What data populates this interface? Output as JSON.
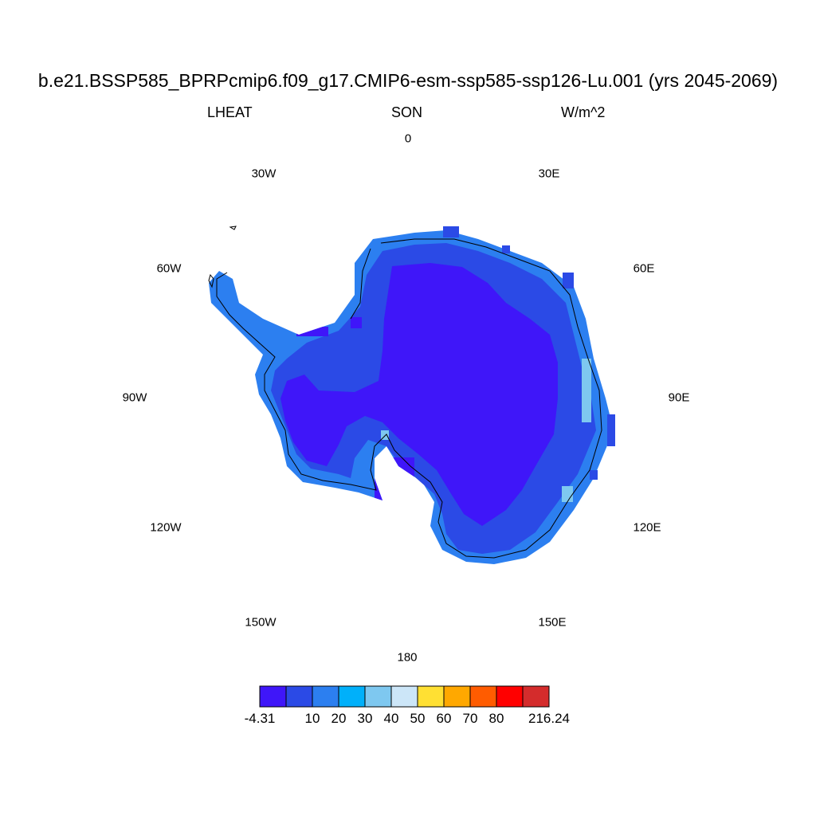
{
  "title": "b.e21.BSSP585_BPRPcmip6.f09_g17.CMIP6-esm-ssp585-ssp126-Lu.001 (yrs 2045-2069)",
  "subtitle": {
    "variable": "LHEAT",
    "season": "SON",
    "units": "W/m^2"
  },
  "longitude_labels": [
    "0",
    "30E",
    "60E",
    "90E",
    "120E",
    "150E",
    "180",
    "150W",
    "120W",
    "90W",
    "60W",
    "30W"
  ],
  "colorbar": {
    "colors": [
      "#3f16f9",
      "#2b4ae6",
      "#2c7ff0",
      "#00b0fa",
      "#7ec8f0",
      "#cce6f8",
      "#ffe033",
      "#ffa800",
      "#ff5c00",
      "#ff0000",
      "#d42c2c"
    ],
    "labels": [
      "-4.31",
      "10",
      "20",
      "30",
      "40",
      "50",
      "60",
      "70",
      "80",
      "216.24"
    ]
  },
  "chart_data": {
    "type": "heatmap",
    "projection": "south polar stereographic",
    "region": "Antarctica",
    "variable": "LHEAT",
    "season": "SON",
    "units": "W/m^2",
    "range": [
      -4.31,
      216.24
    ],
    "levels": [
      -4.31,
      10,
      20,
      30,
      40,
      50,
      60,
      70,
      80,
      216.24
    ],
    "field_description": {
      "interior_plateau": "-4.31 to 10",
      "coastal_margin": "10 to 20",
      "coastline_edges": "20 to 30",
      "isolated_cells": "30 to 40"
    }
  }
}
